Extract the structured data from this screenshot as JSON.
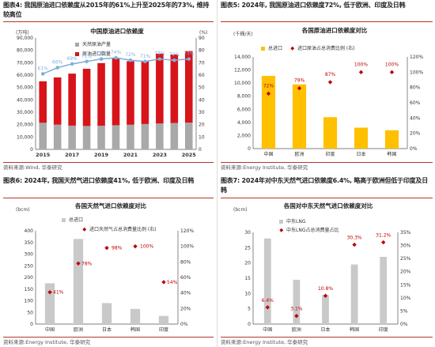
{
  "charts": [
    {
      "fig_title": "图表4:  我国原油进口依赖度从2015年的61%上升至2025年的73%, 维持较高位",
      "source": "资料来源:Wind, 华泰研究",
      "chart_data": {
        "type": "bar",
        "title": "中国原油进口依赖度",
        "ylabel_left": "(万吨)",
        "ylabel_right": "(%)",
        "ylim_left": [
          0,
          90000
        ],
        "ylim_right": [
          0,
          90
        ],
        "yticks_left": [
          "0",
          "10,000",
          "20,000",
          "30,000",
          "40,000",
          "50,000",
          "60,000",
          "70,000",
          "80,000",
          "90,000"
        ],
        "yticks_right": [
          "0",
          "10",
          "20",
          "30",
          "40",
          "50",
          "60",
          "70",
          "80",
          "90"
        ],
        "x_labels": [
          "2015",
          "2017",
          "2019",
          "2021",
          "2023",
          "2025"
        ],
        "categories": [
          "2015",
          "2016",
          "2017",
          "2018",
          "2019",
          "2020",
          "2021",
          "2022",
          "2023",
          "2024",
          "2025"
        ],
        "series": [
          {
            "name": "天然原油产量",
            "kind": "bar",
            "color": "#a9a9a9",
            "values": [
              21500,
              20000,
              19200,
              18900,
              19100,
              19500,
              19900,
              20500,
              20900,
              21300,
              21600
            ]
          },
          {
            "name": "原油进口数量",
            "kind": "bar",
            "color": "#d7141a",
            "values": [
              33500,
              38100,
              42000,
              46200,
              50600,
              54200,
              51300,
              50800,
              56400,
              55300,
              57800
            ]
          },
          {
            "name": "进口依赖度",
            "kind": "line",
            "color": "#7fb1dc",
            "values": [
              61,
              66,
              69,
              71,
              73,
              74,
              72,
              71,
              73,
              72,
              73
            ],
            "labels": [
              "61%",
              "66%",
              "69%",
              "71%",
              "73%",
              "74%",
              "72%",
              "71%",
              "73%",
              "72%",
              "73%"
            ]
          }
        ]
      }
    },
    {
      "fig_title": "图表5:  2024年, 我国原油进口依赖度72%, 低于欧洲、印度及日韩",
      "source": "资料来源:Energy Institute, 华泰研究",
      "chart_data": {
        "type": "bar",
        "title": "各国原油进口依赖度对比",
        "ylabel_left": "(千桶/天)",
        "ylim_left": [
          0,
          14000
        ],
        "ylim_right": [
          0,
          120
        ],
        "yticks_left": [
          "0",
          "2,000",
          "4,000",
          "6,000",
          "8,000",
          "10,000",
          "12,000",
          "14,000"
        ],
        "yticks_right": [
          "0%",
          "20%",
          "40%",
          "60%",
          "80%",
          "100%",
          "120%"
        ],
        "categories": [
          "中国",
          "欧洲",
          "印度",
          "日本",
          "韩国"
        ],
        "series": [
          {
            "name": "总进口",
            "kind": "bar",
            "color": "#ffc000",
            "values": [
              11100,
              9800,
              4800,
              3200,
              2800
            ]
          },
          {
            "name": "进口原油占总消费比例 (右)",
            "kind": "marker",
            "color": "#c00000",
            "values": [
              72,
              79,
              87,
              100,
              100
            ],
            "labels": [
              "72%",
              "79%",
              "87%",
              "100%",
              "100%"
            ]
          }
        ]
      }
    },
    {
      "fig_title": "图表6:  2024年, 我国天然气进口依赖度41%, 低于欧洲、印度及日韩",
      "source": "资料来源:Energy Institute, 华泰研究",
      "chart_data": {
        "type": "bar",
        "title": "各国天然气进口依赖度对比",
        "ylabel_left": "(bcm)",
        "ylim_left": [
          0,
          400
        ],
        "ylim_right": [
          0,
          120
        ],
        "yticks_left": [
          "0",
          "50",
          "100",
          "150",
          "200",
          "250",
          "300",
          "350",
          "400"
        ],
        "yticks_right": [
          "0%",
          "20%",
          "40%",
          "60%",
          "80%",
          "100%",
          "120%"
        ],
        "categories": [
          "中国",
          "欧洲",
          "日本",
          "韩国",
          "印度"
        ],
        "series": [
          {
            "name": "总进口",
            "kind": "bar",
            "color": "#c9c9c9",
            "values": [
              175,
              365,
              90,
              65,
              35
            ]
          },
          {
            "name": "进口天然气占总消费量比例 (右)",
            "kind": "marker",
            "color": "#c00000",
            "values": [
              41,
              78,
              98,
              100,
              54
            ],
            "labels": [
              "41%",
              "78%",
              "98%",
              "100%",
              "54%"
            ]
          }
        ]
      }
    },
    {
      "fig_title": "图表7:  2024年对中东天然气进口依赖度6.4%, 略高于欧洲但低于印度及日韩",
      "source": "资料来源:Energy Institute, 华泰研究",
      "chart_data": {
        "type": "bar",
        "title": "各国对中东天然气进口依赖度对比",
        "ylabel_left": "(bcm)",
        "ylim_left": [
          0,
          30
        ],
        "ylim_right": [
          0,
          35
        ],
        "yticks_left": [
          "0",
          "5",
          "10",
          "15",
          "20",
          "25",
          "30"
        ],
        "yticks_right": [
          "0%",
          "5%",
          "10%",
          "15%",
          "20%",
          "25%",
          "30%",
          "35%"
        ],
        "categories": [
          "中国",
          "欧洲",
          "日本",
          "韩国",
          "印度"
        ],
        "series": [
          {
            "name": "中东LNG",
            "kind": "bar",
            "color": "#c9c9c9",
            "values": [
              28,
              14.5,
              9.5,
              19.5,
              22
            ]
          },
          {
            "name": "中东LNG占总消费量占比",
            "kind": "marker",
            "color": "#c00000",
            "values": [
              6.4,
              3.1,
              10.8,
              30.3,
              31.2
            ],
            "labels": [
              "6.4%",
              "3.1%",
              "10.8%",
              "30.3%",
              "31.2%"
            ]
          }
        ]
      }
    }
  ]
}
